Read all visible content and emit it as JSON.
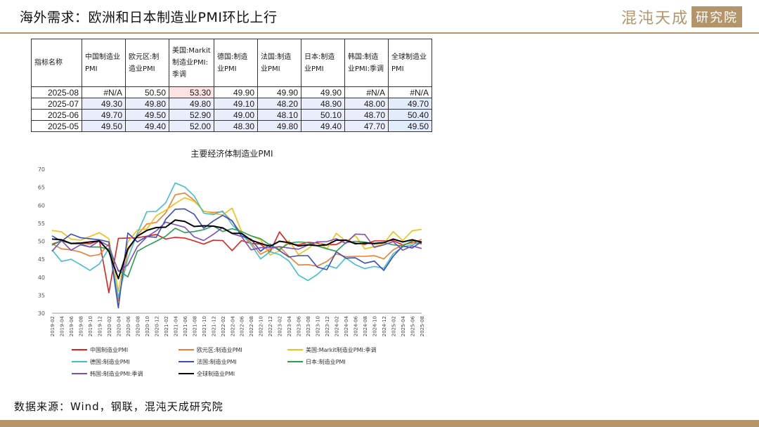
{
  "header": {
    "title": "海外需求：欧洲和日本制造业PMI环比上行"
  },
  "brand": {
    "name_left": "混沌天成",
    "name_right": "研究院"
  },
  "table": {
    "header_label": "指标名称",
    "columns": [
      "中国制造业PMI",
      "欧元区:制造业PMI",
      "美国:Markit制造业PMI:季调",
      "德国:制造业PMI",
      "法国:制造业PMI",
      "日本:制造业PMI",
      "韩国:制造业PMI:季调",
      "全球制造业PMI"
    ],
    "rows": [
      {
        "date": "2025-08",
        "values": [
          "#N/A",
          "50.50",
          "53.30",
          "49.90",
          "49.90",
          "49.90",
          "#N/A",
          "#N/A"
        ]
      },
      {
        "date": "2025-07",
        "values": [
          "49.30",
          "49.80",
          "49.80",
          "49.10",
          "48.20",
          "48.90",
          "48.00",
          "49.70"
        ]
      },
      {
        "date": "2025-06",
        "values": [
          "49.70",
          "49.50",
          "52.90",
          "49.00",
          "48.10",
          "50.10",
          "48.70",
          "50.40"
        ]
      },
      {
        "date": "2025-05",
        "values": [
          "49.50",
          "49.40",
          "52.00",
          "48.30",
          "49.80",
          "49.40",
          "47.70",
          "49.50"
        ]
      }
    ]
  },
  "chart_data": {
    "type": "line",
    "title": "主要经济体制造业PMI",
    "ylim": [
      30,
      70
    ],
    "yticks": [
      30,
      35,
      40,
      45,
      50,
      55,
      60,
      65,
      70
    ],
    "x": [
      "2019-02",
      "2019-04",
      "2019-06",
      "2019-08",
      "2019-10",
      "2019-12",
      "2020-02",
      "2020-04",
      "2020-06",
      "2020-08",
      "2020-10",
      "2020-12",
      "2021-02",
      "2021-04",
      "2021-06",
      "2021-08",
      "2021-10",
      "2021-12",
      "2022-02",
      "2022-04",
      "2022-06",
      "2022-08",
      "2022-10",
      "2022-12",
      "2023-02",
      "2023-04",
      "2023-06",
      "2023-08",
      "2023-10",
      "2023-12",
      "2024-02",
      "2024-04",
      "2024-06",
      "2024-08",
      "2024-10",
      "2024-12",
      "2025-02",
      "2025-04",
      "2025-06",
      "2025-08"
    ],
    "series": [
      {
        "name": "中国制造业PMI",
        "color": "#e0201c",
        "values": [
          49.2,
          50.1,
          49.4,
          49.5,
          49.3,
          50.2,
          35.7,
          50.8,
          50.9,
          51.0,
          51.4,
          51.9,
          50.6,
          51.1,
          50.9,
          50.1,
          49.2,
          50.3,
          50.2,
          47.4,
          50.2,
          49.4,
          49.2,
          47.0,
          52.6,
          49.2,
          49.0,
          49.7,
          49.5,
          49.0,
          49.1,
          50.4,
          49.5,
          49.1,
          50.1,
          50.1,
          50.2,
          49.0,
          49.7,
          49.3
        ]
      },
      {
        "name": "欧元区:制造业PMI",
        "color": "#ed7d31",
        "values": [
          49.3,
          47.9,
          47.6,
          47.0,
          45.9,
          46.3,
          49.2,
          33.4,
          47.4,
          51.7,
          54.8,
          55.2,
          57.9,
          62.9,
          63.4,
          61.4,
          58.3,
          58.0,
          58.2,
          55.5,
          52.1,
          49.6,
          46.4,
          47.8,
          48.5,
          45.8,
          43.4,
          43.5,
          43.1,
          44.4,
          46.5,
          45.7,
          45.8,
          45.8,
          46.0,
          45.1,
          47.6,
          49.0,
          49.5,
          50.5
        ]
      },
      {
        "name": "美国:Markit制造业PMI:季调",
        "color": "#f2c014",
        "values": [
          53.0,
          52.6,
          50.6,
          50.3,
          51.3,
          52.4,
          50.7,
          36.1,
          49.8,
          53.1,
          53.4,
          57.1,
          58.6,
          60.5,
          62.1,
          61.1,
          58.4,
          57.7,
          57.3,
          59.2,
          52.7,
          51.5,
          50.4,
          46.2,
          47.3,
          50.2,
          46.3,
          47.9,
          50.0,
          47.9,
          52.2,
          50.0,
          51.6,
          47.9,
          48.5,
          49.4,
          52.7,
          50.2,
          52.9,
          53.3
        ]
      },
      {
        "name": "德国:制造业PMI",
        "color": "#3fc1c9",
        "values": [
          47.6,
          44.4,
          45.0,
          43.5,
          41.9,
          43.7,
          48.0,
          34.5,
          45.2,
          52.2,
          58.2,
          58.3,
          60.7,
          66.2,
          65.1,
          62.6,
          57.8,
          57.4,
          58.4,
          54.6,
          52.0,
          49.1,
          45.1,
          47.1,
          46.3,
          44.5,
          40.6,
          39.1,
          40.8,
          43.3,
          42.5,
          45.4,
          43.5,
          42.4,
          43.0,
          42.5,
          46.5,
          48.4,
          49.0,
          49.9
        ]
      },
      {
        "name": "法国:制造业PMI",
        "color": "#3b4cc0",
        "values": [
          51.5,
          50.0,
          52.0,
          51.0,
          50.7,
          50.4,
          49.8,
          31.5,
          52.3,
          49.8,
          51.3,
          51.1,
          56.1,
          58.9,
          59.0,
          57.5,
          53.6,
          55.6,
          57.2,
          55.7,
          51.4,
          50.6,
          47.2,
          49.2,
          47.4,
          45.6,
          46.0,
          46.0,
          42.8,
          42.1,
          47.1,
          45.3,
          45.4,
          43.9,
          44.5,
          41.9,
          45.8,
          48.7,
          48.1,
          49.9
        ]
      },
      {
        "name": "日本:制造业PMI",
        "color": "#28a052",
        "values": [
          48.9,
          50.2,
          49.3,
          49.3,
          48.4,
          48.4,
          47.8,
          41.9,
          40.1,
          47.2,
          48.7,
          50.0,
          51.4,
          53.6,
          52.4,
          52.7,
          53.2,
          54.3,
          52.7,
          53.5,
          52.7,
          51.5,
          50.7,
          48.9,
          47.7,
          49.5,
          49.8,
          49.6,
          48.7,
          47.9,
          47.2,
          49.6,
          50.0,
          49.8,
          49.2,
          49.6,
          49.0,
          48.7,
          50.1,
          49.9
        ]
      },
      {
        "name": "韩国:制造业PMI:季调",
        "color": "#7b4fbe",
        "values": [
          47.2,
          50.2,
          47.5,
          49.0,
          48.4,
          50.1,
          48.7,
          41.6,
          43.4,
          48.5,
          51.2,
          52.9,
          55.3,
          54.6,
          53.9,
          51.2,
          50.2,
          51.9,
          53.8,
          52.1,
          51.3,
          47.6,
          48.2,
          48.2,
          48.5,
          48.1,
          47.8,
          48.9,
          49.8,
          49.9,
          50.7,
          49.4,
          52.0,
          51.9,
          48.3,
          49.0,
          49.9,
          47.5,
          48.7,
          48.0
        ]
      },
      {
        "name": "全球制造业PMI",
        "color": "#000000",
        "values": [
          50.6,
          50.4,
          49.4,
          49.5,
          49.8,
          50.1,
          47.2,
          39.6,
          47.9,
          51.4,
          53.0,
          53.8,
          53.9,
          55.9,
          55.5,
          54.1,
          54.3,
          54.2,
          53.7,
          52.2,
          52.2,
          50.3,
          49.4,
          48.6,
          50.0,
          49.6,
          48.7,
          49.0,
          48.8,
          49.0,
          50.3,
          50.3,
          49.3,
          49.5,
          49.4,
          49.6,
          50.6,
          49.8,
          50.4,
          49.7
        ]
      }
    ]
  },
  "footer": {
    "source": "数据来源：Wind，钢联，混沌天成研究院"
  }
}
